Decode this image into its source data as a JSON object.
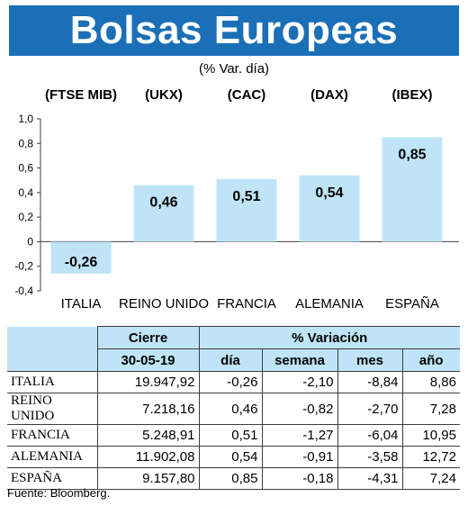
{
  "title": "Bolsas Europeas",
  "subtitle": "(% Var. día)",
  "source": "Fuente: Bloomberg.",
  "colors": {
    "title_bg": "#1a6fb7",
    "bar": "#bfe4f7",
    "header_bg": "#bfe4f7"
  },
  "chart_data": {
    "type": "bar",
    "categories": [
      "ITALIA",
      "REINO UNIDO",
      "FRANCIA",
      "ALEMANIA",
      "ESPAÑA"
    ],
    "index_labels": [
      "(FTSE MIB)",
      "(UKX)",
      "(CAC)",
      "(DAX)",
      "(IBEX)"
    ],
    "values": [
      -0.26,
      0.46,
      0.51,
      0.54,
      0.85
    ],
    "value_labels": [
      "-0,26",
      "0,46",
      "0,51",
      "0,54",
      "0,85"
    ],
    "y_ticks": [
      "1,0",
      "0,8",
      "0,6",
      "0,4",
      "0,2",
      "0",
      "-0,2",
      "-0,4"
    ],
    "ylim": [
      -0.4,
      1.0
    ],
    "grid": false
  },
  "table": {
    "group_headers": {
      "cierre": "Cierre",
      "variacion": "% Variación"
    },
    "sub_headers": [
      "30-05-19",
      "día",
      "semana",
      "mes",
      "año"
    ],
    "rows": [
      [
        "ITALIA",
        "19.947,92",
        "-0,26",
        "-2,10",
        "-8,84",
        "8,86"
      ],
      [
        "REINO UNIDO",
        "7.218,16",
        "0,46",
        "-0,82",
        "-2,70",
        "7,28"
      ],
      [
        "FRANCIA",
        "5.248,91",
        "0,51",
        "-1,27",
        "-6,04",
        "10,95"
      ],
      [
        "ALEMANIA",
        "11.902,08",
        "0,54",
        "-0,91",
        "-3,58",
        "12,72"
      ],
      [
        "ESPAÑA",
        "9.157,80",
        "0,85",
        "-0,18",
        "-4,31",
        "7,24"
      ]
    ]
  }
}
